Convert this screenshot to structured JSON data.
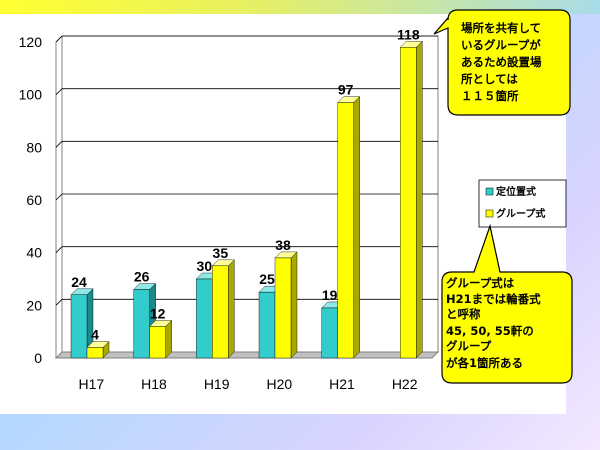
{
  "chart_data": {
    "type": "bar",
    "categories": [
      "H17",
      "H18",
      "H19",
      "H20",
      "H21",
      "H22"
    ],
    "series": [
      {
        "name": "定位置式",
        "values": [
          24,
          26,
          30,
          25,
          19,
          null
        ],
        "color": "#33cccc",
        "side_color": "#1a8a8a",
        "top_color": "#8ee8e8"
      },
      {
        "name": "グループ式",
        "values": [
          4,
          12,
          35,
          38,
          97,
          118
        ],
        "color": "#ffff00",
        "side_color": "#a8a800",
        "top_color": "#ffff99"
      }
    ],
    "ylim": [
      0,
      120
    ],
    "yticks": [
      0,
      20,
      40,
      60,
      80,
      100,
      120
    ],
    "grid": true,
    "legend_position": "right"
  },
  "callouts": {
    "top": [
      "場所を共有して",
      "いるグループが",
      "あるため設置場",
      "所としては",
      "１１５箇所"
    ],
    "bottom": [
      "グループ式は",
      "H21までは輪番式",
      "と呼称",
      "45, 50, 55軒の",
      "グループ",
      "が各1箇所ある"
    ]
  },
  "colors": {
    "callout_fill": "#ffff00",
    "gridline": "#000000"
  }
}
